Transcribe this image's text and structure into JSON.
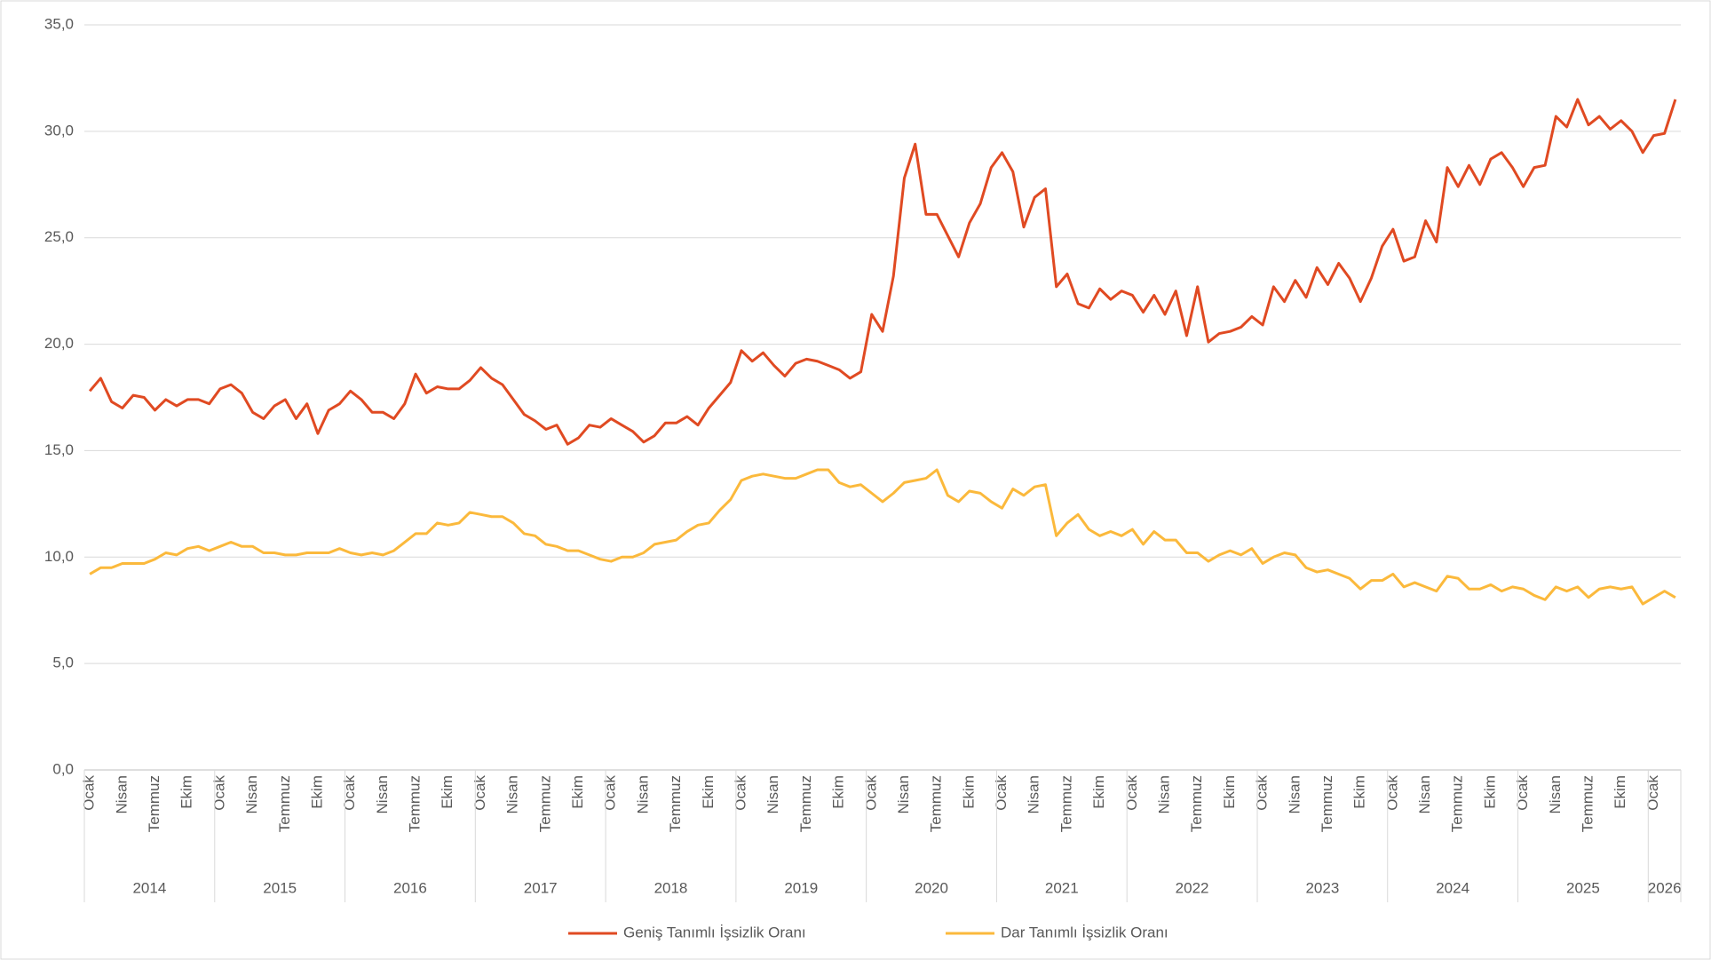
{
  "chart_data": {
    "type": "line",
    "categories": [
      "Ocak",
      null,
      null,
      "Nisan",
      null,
      null,
      "Temmuz",
      null,
      null,
      "Ekim",
      null,
      null,
      "Ocak",
      null,
      null,
      "Nisan",
      null,
      null,
      "Temmuz",
      null,
      null,
      "Ekim",
      null,
      null,
      "Ocak",
      null,
      null,
      "Nisan",
      null,
      null,
      "Temmuz",
      null,
      null,
      "Ekim",
      null,
      null,
      "Ocak",
      null,
      null,
      "Nisan",
      null,
      null,
      "Temmuz",
      null,
      null,
      "Ekim",
      null,
      null,
      "Ocak",
      null,
      null,
      "Nisan",
      null,
      null,
      "Temmuz",
      null,
      null,
      "Ekim",
      null,
      null,
      "Ocak",
      null,
      null,
      "Nisan",
      null,
      null,
      "Temmuz",
      null,
      null,
      "Ekim",
      null,
      null,
      "Ocak",
      null,
      null,
      "Nisan",
      null,
      null,
      "Temmuz",
      null,
      null,
      "Ekim",
      null,
      null,
      "Ocak",
      null,
      null,
      "Nisan",
      null,
      null,
      "Temmuz",
      null,
      null,
      "Ekim",
      null,
      null,
      "Ocak",
      null,
      null,
      "Nisan",
      null,
      null,
      "Temmuz",
      null,
      null,
      "Ekim",
      null,
      null,
      "Ocak",
      null,
      null,
      "Nisan",
      null,
      null,
      "Temmuz",
      null,
      null,
      "Ekim",
      null,
      null,
      "Ocak",
      null,
      null,
      "Nisan",
      null,
      null,
      "Temmuz",
      null,
      null,
      "Ekim",
      null,
      null,
      "Ocak",
      null,
      null,
      "Nisan",
      null,
      null,
      "Temmuz",
      null,
      null,
      "Ekim",
      null,
      null,
      "Ocak",
      null,
      null
    ],
    "years": [
      "2014",
      "2015",
      "2016",
      "2017",
      "2018",
      "2019",
      "2020",
      "2021",
      "2022",
      "2023",
      "2024",
      "2025",
      "2026"
    ],
    "series": [
      {
        "name": "Geniş Tanımlı İşsizlik Oranı",
        "color": "#e04a22",
        "values": [
          17.8,
          18.4,
          17.3,
          17.0,
          17.6,
          17.5,
          16.9,
          17.4,
          17.1,
          17.4,
          17.4,
          17.2,
          17.9,
          18.1,
          17.7,
          16.8,
          16.5,
          17.1,
          17.4,
          16.5,
          17.2,
          15.8,
          16.9,
          17.2,
          17.8,
          17.4,
          16.8,
          16.8,
          16.5,
          17.2,
          18.6,
          17.7,
          18.0,
          17.9,
          17.9,
          18.3,
          18.9,
          18.4,
          18.1,
          17.4,
          16.7,
          16.4,
          16.0,
          16.2,
          15.3,
          15.6,
          16.2,
          16.1,
          16.5,
          16.2,
          15.9,
          15.4,
          15.7,
          16.3,
          16.3,
          16.6,
          16.2,
          17.0,
          17.6,
          18.2,
          19.7,
          19.2,
          19.6,
          19.0,
          18.5,
          19.1,
          19.3,
          19.2,
          19.0,
          18.8,
          18.4,
          18.7,
          21.4,
          20.6,
          23.2,
          27.8,
          29.4,
          26.1,
          26.1,
          25.1,
          24.1,
          25.7,
          26.6,
          28.3,
          29.0,
          28.1,
          25.5,
          26.9,
          27.3,
          22.7,
          23.3,
          21.9,
          21.7,
          22.6,
          22.1,
          22.5,
          22.3,
          21.5,
          22.3,
          21.4,
          22.5,
          20.4,
          22.7,
          20.1,
          20.5,
          20.6,
          20.8,
          21.3,
          20.9,
          22.7,
          22.0,
          23.0,
          22.2,
          23.6,
          22.8,
          23.8,
          23.1,
          22.0,
          23.1,
          24.6,
          25.4,
          23.9,
          24.1,
          25.8,
          24.8,
          28.3,
          27.4,
          28.4,
          27.5,
          28.7,
          29.0,
          28.3,
          27.4,
          28.3,
          28.4,
          30.7,
          30.2,
          31.5,
          30.3,
          30.7,
          30.1,
          30.5,
          30.0,
          29.0,
          29.8,
          29.9,
          31.5
        ]
      },
      {
        "name": "Dar Tanımlı İşsizlik Oranı",
        "color": "#fbb93c",
        "values": [
          9.2,
          9.5,
          9.5,
          9.7,
          9.7,
          9.7,
          9.9,
          10.2,
          10.1,
          10.4,
          10.5,
          10.3,
          10.5,
          10.7,
          10.5,
          10.5,
          10.2,
          10.2,
          10.1,
          10.1,
          10.2,
          10.2,
          10.2,
          10.4,
          10.2,
          10.1,
          10.2,
          10.1,
          10.3,
          10.7,
          11.1,
          11.1,
          11.6,
          11.5,
          11.6,
          12.1,
          12.0,
          11.9,
          11.9,
          11.6,
          11.1,
          11.0,
          10.6,
          10.5,
          10.3,
          10.3,
          10.1,
          9.9,
          9.8,
          10.0,
          10.0,
          10.2,
          10.6,
          10.7,
          10.8,
          11.2,
          11.5,
          11.6,
          12.2,
          12.7,
          13.6,
          13.8,
          13.9,
          13.8,
          13.7,
          13.7,
          13.9,
          14.1,
          14.1,
          13.5,
          13.3,
          13.4,
          13.0,
          12.6,
          13.0,
          13.5,
          13.6,
          13.7,
          14.1,
          12.9,
          12.6,
          13.1,
          13.0,
          12.6,
          12.3,
          13.2,
          12.9,
          13.3,
          13.4,
          11.0,
          11.6,
          12.0,
          11.3,
          11.0,
          11.2,
          11.0,
          11.3,
          10.6,
          11.2,
          10.8,
          10.8,
          10.2,
          10.2,
          9.8,
          10.1,
          10.3,
          10.1,
          10.4,
          9.7,
          10.0,
          10.2,
          10.1,
          9.5,
          9.3,
          9.4,
          9.2,
          9.0,
          8.5,
          8.9,
          8.9,
          9.2,
          8.6,
          8.8,
          8.6,
          8.4,
          9.1,
          9.0,
          8.5,
          8.5,
          8.7,
          8.4,
          8.6,
          8.5,
          8.2,
          8.0,
          8.6,
          8.4,
          8.6,
          8.1,
          8.5,
          8.6,
          8.5,
          8.6,
          7.8,
          8.1,
          8.4,
          8.1
        ]
      }
    ],
    "ylim": [
      0,
      35
    ],
    "yticks": [
      {
        "value": 0,
        "label": "0,0"
      },
      {
        "value": 5,
        "label": "5,0"
      },
      {
        "value": 10,
        "label": "10,0"
      },
      {
        "value": 15,
        "label": "15,0"
      },
      {
        "value": 20,
        "label": "20,0"
      },
      {
        "value": 25,
        "label": "25,0"
      },
      {
        "value": 30,
        "label": "30,0"
      },
      {
        "value": 35,
        "label": "35,0"
      }
    ],
    "grid": true,
    "legend": "bottom"
  }
}
